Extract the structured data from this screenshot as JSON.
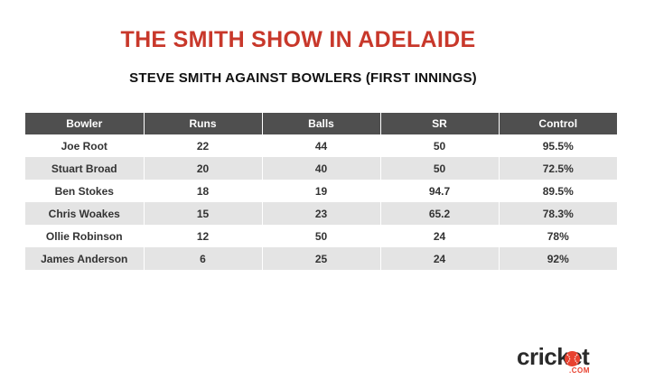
{
  "chart_data": {
    "type": "table",
    "title": "THE SMITH SHOW IN ADELAIDE",
    "subtitle": "STEVE SMITH AGAINST BOWLERS (FIRST INNINGS)",
    "columns": [
      "Bowler",
      "Runs",
      "Balls",
      "SR",
      "Control"
    ],
    "rows": [
      [
        "Joe Root",
        "22",
        "44",
        "50",
        "95.5%"
      ],
      [
        "Stuart Broad",
        "20",
        "40",
        "50",
        "72.5%"
      ],
      [
        "Ben Stokes",
        "18",
        "19",
        "94.7",
        "89.5%"
      ],
      [
        "Chris Woakes",
        "15",
        "23",
        "65.2",
        "78.3%"
      ],
      [
        "Ollie Robinson",
        "12",
        "50",
        "24",
        "78%"
      ],
      [
        "James Anderson",
        "6",
        "25",
        "24",
        "92%"
      ]
    ]
  },
  "logo": {
    "word": "cricket",
    "sub": ".COM",
    "colors": {
      "ball": "#e8412f",
      "text": "#2a2a2a"
    }
  },
  "colors": {
    "title": "#c8382b",
    "header_bg": "#4f4f4f",
    "row_alt": "#e4e4e4"
  }
}
